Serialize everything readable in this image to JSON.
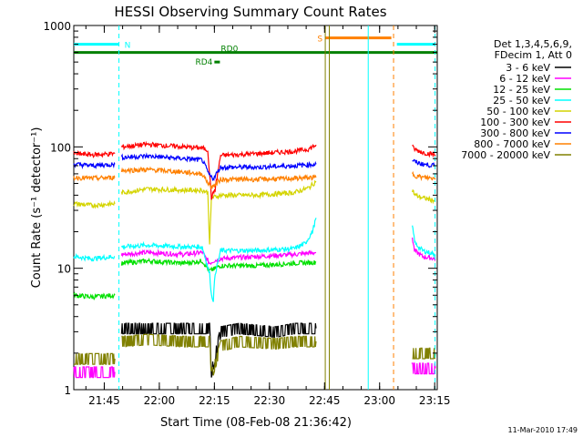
{
  "chart_data": {
    "type": "line",
    "title": "HESSI Observing Summary Count Rates",
    "xlabel": "Start Time (08-Feb-08 21:36:42)",
    "ylabel": "Count Rate (s⁻¹ detector⁻¹)",
    "x_unit": "minutes since 21:36:42",
    "xlim": [
      0,
      99
    ],
    "ylim": [
      1,
      1000
    ],
    "y_scale": "log",
    "x_ticks": [
      {
        "value": 8.3,
        "label": "21:45"
      },
      {
        "value": 23.3,
        "label": "22:00"
      },
      {
        "value": 38.3,
        "label": "22:15"
      },
      {
        "value": 53.3,
        "label": "22:30"
      },
      {
        "value": 68.3,
        "label": "22:45"
      },
      {
        "value": 83.3,
        "label": "23:00"
      },
      {
        "value": 98.3,
        "label": "23:15"
      }
    ],
    "y_ticks": [
      {
        "value": 1,
        "label": "1"
      },
      {
        "value": 10,
        "label": "10"
      },
      {
        "value": 100,
        "label": "100"
      },
      {
        "value": 1000,
        "label": "1000"
      }
    ],
    "legend_header": [
      "Det 1,3,4,5,6,9,",
      "FDecim 1, Att 0"
    ],
    "legend_placement": "right",
    "series": [
      {
        "name": "3 - 6 keV",
        "color": "#000000",
        "segments": [
          {
            "x": [
              13,
              20,
              30,
              36,
              37,
              37.5,
              40,
              45,
              55,
              60,
              66
            ],
            "y": [
              3.2,
              3.2,
              3.2,
              3.2,
              3.2,
              1.4,
              3.0,
              3.2,
              3.0,
              3.2,
              3.2
            ]
          }
        ]
      },
      {
        "name": "6 - 12 keV",
        "color": "#ff00ff",
        "segments": [
          {
            "x": [
              0,
              4,
              8,
              11.2
            ],
            "y": [
              1.4,
              1.4,
              1.4,
              1.4
            ]
          },
          {
            "x": [
              13,
              20,
              30,
              35,
              37,
              38,
              40,
              50,
              60,
              66
            ],
            "y": [
              13,
              13.5,
              13,
              13.5,
              11,
              11.5,
              12,
              12.5,
              13,
              13.5
            ]
          },
          {
            "x": [
              92,
              95,
              98.5
            ],
            "y": [
              1.5,
              1.5,
              1.5
            ]
          },
          {
            "x": [
              92.2,
              92.8,
              95,
              98.5
            ],
            "y": [
              18,
              14,
              12.5,
              12
            ]
          }
        ]
      },
      {
        "name": "12 - 25 keV",
        "color": "#00e000",
        "segments": [
          {
            "x": [
              0,
              5,
              11.2
            ],
            "y": [
              6,
              5.8,
              6
            ]
          },
          {
            "x": [
              13,
              20,
              30,
              35,
              37,
              38,
              40,
              50,
              60,
              66
            ],
            "y": [
              11,
              11.5,
              11,
              11.5,
              9.5,
              9.8,
              10.5,
              10.5,
              11,
              11.2
            ]
          }
        ]
      },
      {
        "name": "25 - 50 keV",
        "color": "#00ffff",
        "segments": [
          {
            "x": [
              0,
              5,
              11.2
            ],
            "y": [
              12.5,
              12,
              12.5
            ]
          },
          {
            "x": [
              13,
              20,
              30,
              35,
              37,
              37.5,
              38,
              38.5,
              40,
              50,
              60,
              63,
              65,
              66
            ],
            "y": [
              15,
              15.5,
              15,
              15,
              9,
              6,
              5.5,
              9,
              14,
              14,
              14.5,
              16,
              20,
              26
            ]
          },
          {
            "x": [
              92.2,
              93,
              95,
              98.5
            ],
            "y": [
              22,
              16,
              14,
              13
            ]
          }
        ]
      },
      {
        "name": "50 - 100 keV",
        "color": "#d4d400",
        "segments": [
          {
            "x": [
              0,
              5,
              11.2
            ],
            "y": [
              34,
              33,
              34
            ]
          },
          {
            "x": [
              13,
              20,
              30,
              35,
              36.5,
              37,
              37.5,
              40,
              50,
              60,
              64,
              66
            ],
            "y": [
              42,
              45,
              44,
              44,
              42,
              16,
              38,
              40,
              40,
              42,
              46,
              52
            ]
          },
          {
            "x": [
              92.2,
              93,
              95,
              98.5
            ],
            "y": [
              44,
              40,
              38,
              36
            ]
          }
        ]
      },
      {
        "name": "100 - 300 keV",
        "color": "#ff0000",
        "segments": [
          {
            "x": [
              0,
              5,
              11.2
            ],
            "y": [
              88,
              86,
              88
            ]
          },
          {
            "x": [
              13,
              20,
              30,
              35,
              36.5,
              37,
              37.5,
              38.5,
              40,
              50,
              60,
              64,
              66
            ],
            "y": [
              100,
              105,
              100,
              98,
              94,
              60,
              38,
              45,
              85,
              88,
              92,
              96,
              104
            ]
          },
          {
            "x": [
              92.2,
              93,
              95,
              98.5
            ],
            "y": [
              100,
              95,
              90,
              86
            ]
          }
        ]
      },
      {
        "name": "300 - 800 keV",
        "color": "#0000ff",
        "segments": [
          {
            "x": [
              0,
              5,
              11.2
            ],
            "y": [
              72,
              70,
              72
            ]
          },
          {
            "x": [
              13,
              20,
              30,
              35,
              37,
              38,
              40,
              50,
              60,
              66
            ],
            "y": [
              82,
              84,
              80,
              78,
              58,
              55,
              68,
              68,
              70,
              72
            ]
          },
          {
            "x": [
              92.2,
              93,
              95,
              98.5
            ],
            "y": [
              78,
              75,
              72,
              70
            ]
          }
        ]
      },
      {
        "name": "800 - 7000 keV",
        "color": "#ff8000",
        "segments": [
          {
            "x": [
              0,
              5,
              11.2
            ],
            "y": [
              56,
              55,
              56
            ]
          },
          {
            "x": [
              13,
              20,
              30,
              35,
              37,
              38,
              40,
              50,
              60,
              66
            ],
            "y": [
              64,
              65,
              62,
              60,
              48,
              47,
              54,
              54,
              55,
              56
            ]
          },
          {
            "x": [
              92.2,
              93,
              95,
              98.5
            ],
            "y": [
              60,
              58,
              56,
              55
            ]
          }
        ]
      },
      {
        "name": "7000 - 20000 keV",
        "color": "#808000",
        "segments": [
          {
            "x": [
              0,
              5,
              11.2
            ],
            "y": [
              1.8,
              1.8,
              1.8
            ]
          },
          {
            "x": [
              13,
              20,
              30,
              36,
              37,
              37.5,
              40,
              45,
              55,
              60,
              66
            ],
            "y": [
              2.5,
              2.6,
              2.5,
              2.5,
              2.5,
              1.3,
              2.3,
              2.5,
              2.4,
              2.5,
              2.5
            ]
          },
          {
            "x": [
              92.2,
              95,
              98.5
            ],
            "y": [
              2.0,
              2.0,
              2.0
            ]
          }
        ]
      }
    ],
    "flag_bars": [
      {
        "label": "N",
        "color": "#00ffff",
        "y": 700,
        "ranges": [
          [
            0,
            12.3
          ],
          [
            88,
            98.5
          ]
        ]
      },
      {
        "label": "S",
        "color": "#ff8000",
        "y": 790,
        "ranges": [
          [
            68.5,
            86.5
          ]
        ]
      },
      {
        "label": "RD0",
        "color": "#008000",
        "y": 600,
        "ranges": [
          [
            0,
            99
          ]
        ]
      },
      {
        "label": "RD4",
        "color": "#008000",
        "y": 500,
        "ranges": [
          [
            38.3,
            39.8
          ]
        ]
      }
    ],
    "vertical_lines": [
      {
        "x": 12.3,
        "color": "#00ffff",
        "style": "dashed"
      },
      {
        "x": 68.5,
        "color": "#808000",
        "style": "solid"
      },
      {
        "x": 69.6,
        "color": "#808000",
        "style": "solid"
      },
      {
        "x": 80.2,
        "color": "#00ffff",
        "style": "solid"
      },
      {
        "x": 87.1,
        "color": "#ff8000",
        "style": "dashed"
      },
      {
        "x": 98.4,
        "color": "#00ffff",
        "style": "dashed"
      }
    ]
  },
  "footer": {
    "timestamp": "11-Mar-2010 17:49"
  }
}
